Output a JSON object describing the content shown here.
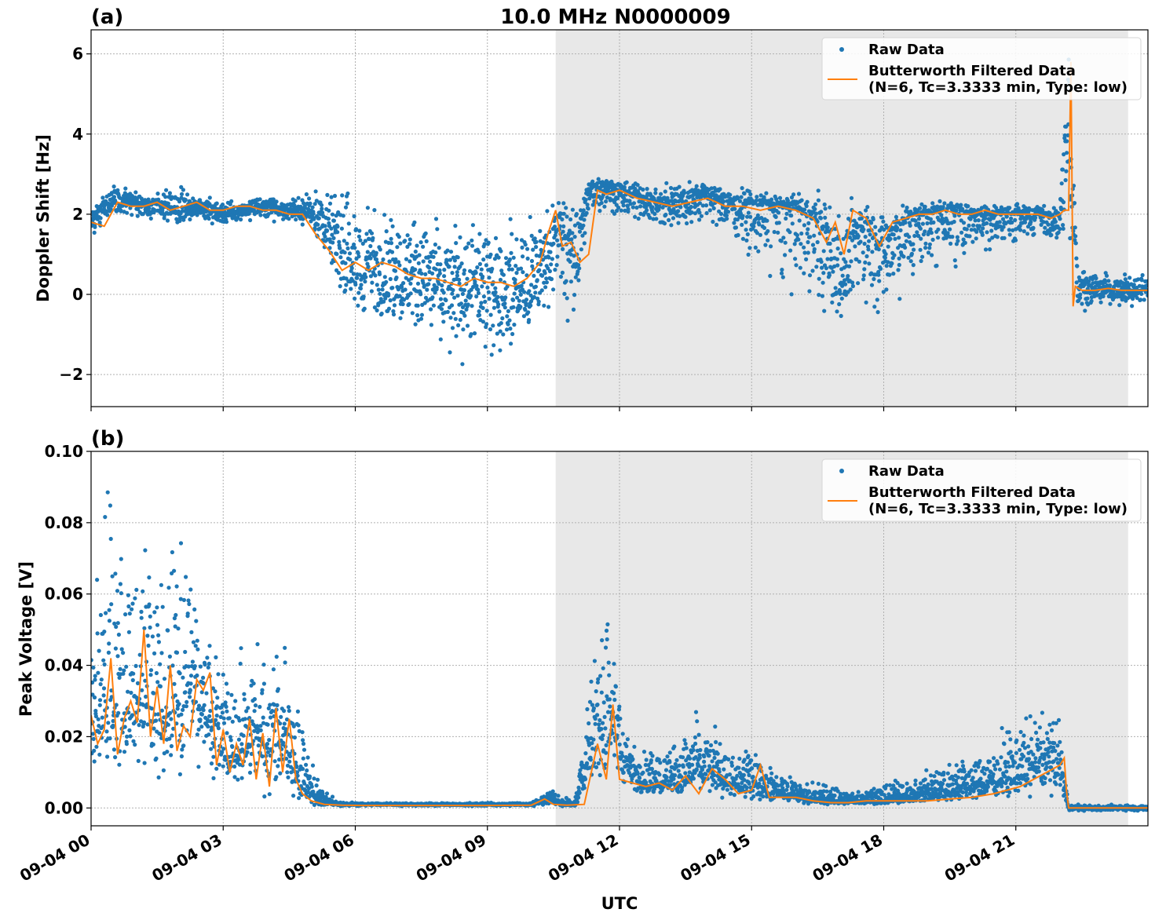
{
  "figure": {
    "title": "10.0 MHz N0000009",
    "xlabel": "UTC"
  },
  "chart_data": [
    {
      "type": "scatter",
      "panel_label": "(a)",
      "ylabel": "Doppler Shift [Hz]",
      "xlim": [
        0,
        24
      ],
      "ylim": [
        -2.8,
        6.6
      ],
      "yticks": [
        -2,
        0,
        2,
        4,
        6
      ],
      "ytick_labels": [
        "−2",
        "0",
        "2",
        "4",
        "6"
      ],
      "grid": true,
      "legend_position": "top-right",
      "shaded_region": {
        "start": 10.55,
        "end": 23.55,
        "color": "#e8e8e8"
      },
      "series": [
        {
          "name": "Raw Data",
          "style": "points",
          "color": "#1f77b4",
          "x": [
            0,
            0.5,
            1,
            1.5,
            2,
            2.5,
            3,
            3.5,
            4,
            4.5,
            5,
            5.5,
            6,
            6.5,
            7,
            7.5,
            8,
            8.5,
            9,
            9.5,
            10,
            10.3,
            10.6,
            11,
            11.3,
            11.6,
            12,
            12.5,
            13,
            13.5,
            14,
            14.5,
            15,
            15.5,
            16,
            16.5,
            17,
            17.5,
            18,
            18.5,
            19,
            19.5,
            20,
            20.5,
            21,
            21.5,
            22,
            22.2,
            22.4,
            23,
            23.55,
            24
          ],
          "y": [
            1.8,
            2.4,
            2.3,
            2.2,
            2.1,
            2.2,
            2.0,
            2.1,
            2.2,
            2.1,
            2.1,
            1.5,
            0.6,
            0.6,
            0.5,
            0.3,
            0.3,
            0.1,
            0.2,
            0.0,
            0.1,
            0.8,
            1.6,
            0.9,
            2.6,
            2.7,
            2.5,
            2.4,
            2.2,
            2.3,
            2.5,
            2.3,
            2.2,
            2.2,
            2.1,
            1.8,
            0.6,
            1.6,
            1.2,
            1.8,
            2.0,
            2.1,
            2.0,
            2.0,
            2.0,
            2.0,
            1.9,
            5.5,
            0.2,
            0.1,
            0.1,
            0.1
          ],
          "y_low": [
            1.4,
            1.9,
            1.9,
            1.8,
            1.6,
            1.8,
            1.7,
            1.8,
            1.8,
            1.8,
            1.7,
            0.3,
            -0.9,
            -1.1,
            -1.3,
            -1.6,
            -1.7,
            -1.8,
            -1.7,
            -1.7,
            -1.1,
            -0.5,
            -0.6,
            -0.9,
            1.9,
            1.9,
            1.8,
            1.7,
            1.5,
            1.5,
            1.7,
            1.4,
            0.6,
            0.3,
            -0.2,
            -0.8,
            -1.2,
            -0.6,
            -1.0,
            -0.2,
            0.3,
            0.6,
            0.8,
            1.0,
            1.1,
            1.2,
            1.2,
            -0.8,
            -0.8,
            -0.4,
            -0.3,
            -0.3
          ],
          "y_high": [
            2.1,
            2.8,
            2.6,
            2.6,
            2.7,
            2.6,
            2.3,
            2.4,
            2.5,
            2.4,
            2.6,
            2.7,
            2.6,
            2.5,
            2.3,
            2.2,
            2.1,
            2.2,
            2.3,
            2.1,
            2.4,
            2.7,
            2.6,
            2.4,
            3.0,
            3.0,
            2.9,
            2.8,
            2.8,
            2.9,
            2.9,
            2.7,
            2.7,
            2.6,
            2.6,
            2.6,
            2.6,
            2.4,
            2.5,
            2.4,
            2.4,
            2.4,
            2.3,
            2.3,
            2.3,
            2.3,
            2.2,
            6.2,
            0.7,
            0.6,
            0.6,
            0.6
          ]
        },
        {
          "name": "Butterworth Filtered Data\n(N=6, Tc=3.3333 min, Type: low)",
          "style": "line",
          "color": "#ff7f0e",
          "x": [
            0,
            0.3,
            0.6,
            0.9,
            1.2,
            1.5,
            1.8,
            2.1,
            2.4,
            2.7,
            3.0,
            3.3,
            3.6,
            3.9,
            4.2,
            4.5,
            4.8,
            5.1,
            5.4,
            5.7,
            6.0,
            6.3,
            6.6,
            6.9,
            7.2,
            7.5,
            7.8,
            8.1,
            8.4,
            8.7,
            9.0,
            9.3,
            9.6,
            9.9,
            10.2,
            10.4,
            10.55,
            10.7,
            10.9,
            11.1,
            11.3,
            11.5,
            11.7,
            12.0,
            12.4,
            12.8,
            13.2,
            13.6,
            14.0,
            14.4,
            14.8,
            15.2,
            15.6,
            16.0,
            16.4,
            16.7,
            16.9,
            17.1,
            17.3,
            17.6,
            17.9,
            18.2,
            18.5,
            18.8,
            19.1,
            19.4,
            19.7,
            20.0,
            20.3,
            20.6,
            20.9,
            21.2,
            21.5,
            21.8,
            22.0,
            22.1,
            22.2,
            22.25,
            22.3,
            22.35,
            22.5,
            22.8,
            23.1,
            23.4,
            23.7,
            24
          ],
          "y": [
            1.8,
            1.7,
            2.3,
            2.2,
            2.2,
            2.3,
            2.1,
            2.2,
            2.3,
            2.1,
            2.1,
            2.2,
            2.2,
            2.1,
            2.1,
            2.0,
            2.0,
            1.5,
            1.1,
            0.6,
            0.8,
            0.6,
            0.8,
            0.7,
            0.5,
            0.4,
            0.4,
            0.3,
            0.2,
            0.4,
            0.3,
            0.3,
            0.2,
            0.4,
            0.8,
            1.6,
            2.1,
            1.2,
            1.3,
            0.8,
            1.0,
            2.6,
            2.5,
            2.6,
            2.4,
            2.3,
            2.2,
            2.3,
            2.4,
            2.2,
            2.2,
            2.1,
            2.2,
            2.1,
            1.9,
            1.3,
            1.8,
            1.0,
            2.1,
            1.9,
            1.2,
            1.8,
            1.9,
            2.0,
            2.0,
            2.1,
            2.0,
            2.0,
            2.1,
            2.0,
            2.0,
            2.0,
            2.0,
            1.9,
            2.0,
            2.1,
            2.1,
            5.8,
            -0.3,
            0.2,
            0.1,
            0.1,
            0.15,
            0.1,
            0.1,
            0.1
          ]
        }
      ]
    },
    {
      "type": "scatter",
      "panel_label": "(b)",
      "ylabel": "Peak Voltage [V]",
      "xlim": [
        0,
        24
      ],
      "ylim": [
        -0.005,
        0.1
      ],
      "yticks": [
        0.0,
        0.02,
        0.04,
        0.06,
        0.08,
        0.1
      ],
      "ytick_labels": [
        "0.00",
        "0.02",
        "0.04",
        "0.06",
        "0.08",
        "0.10"
      ],
      "xticks": [
        0,
        3,
        6,
        9,
        12,
        15,
        18,
        21
      ],
      "xtick_labels": [
        "09-04 00",
        "09-04 03",
        "09-04 06",
        "09-04 09",
        "09-04 12",
        "09-04 15",
        "09-04 18",
        "09-04 21"
      ],
      "grid": true,
      "legend_position": "top-right",
      "shaded_region": {
        "start": 10.55,
        "end": 23.55,
        "color": "#e8e8e8"
      },
      "series": [
        {
          "name": "Raw Data",
          "style": "points",
          "color": "#1f77b4",
          "x": [
            0,
            0.4,
            0.8,
            1.2,
            1.6,
            2.0,
            2.4,
            2.8,
            3.2,
            3.6,
            4.0,
            4.4,
            4.8,
            5.2,
            5.6,
            6,
            7,
            8,
            9,
            10,
            10.4,
            10.7,
            11,
            11.4,
            11.8,
            12.2,
            12.6,
            13,
            13.4,
            13.8,
            14.2,
            14.6,
            15,
            15.4,
            15.8,
            16.2,
            16.6,
            17,
            17.5,
            18,
            18.5,
            19,
            19.5,
            20,
            20.5,
            21,
            21.5,
            22,
            22.2,
            22.5,
            23,
            24
          ],
          "y": [
            0.025,
            0.03,
            0.028,
            0.032,
            0.025,
            0.03,
            0.035,
            0.02,
            0.015,
            0.02,
            0.02,
            0.018,
            0.006,
            0.002,
            0.001,
            0.001,
            0.001,
            0.001,
            0.001,
            0.001,
            0.003,
            0.001,
            0.001,
            0.02,
            0.028,
            0.01,
            0.008,
            0.008,
            0.007,
            0.012,
            0.01,
            0.006,
            0.008,
            0.005,
            0.004,
            0.003,
            0.002,
            0.002,
            0.002,
            0.002,
            0.003,
            0.004,
            0.005,
            0.006,
            0.008,
            0.01,
            0.012,
            0.012,
            0.0,
            0.0,
            0.0,
            0.0
          ],
          "y_low": [
            0.004,
            0.006,
            0.008,
            0.007,
            0.006,
            0.005,
            0.008,
            0.004,
            0.004,
            0.004,
            0.003,
            0.003,
            0.001,
            0.0005,
            0.0005,
            0.0005,
            0.0005,
            0.0005,
            0.0005,
            0.0005,
            0.0005,
            0.0005,
            0.0005,
            0.005,
            0.006,
            0.002,
            0.002,
            0.002,
            0.002,
            0.003,
            0.003,
            0.002,
            0.002,
            0.001,
            0.001,
            0.001,
            0.0008,
            0.0008,
            0.0008,
            0.0008,
            0.001,
            0.001,
            0.001,
            0.002,
            0.002,
            0.002,
            0.003,
            0.003,
            -0.001,
            -0.001,
            -0.001,
            -0.001
          ],
          "y_high": [
            0.05,
            0.095,
            0.07,
            0.092,
            0.065,
            0.08,
            0.065,
            0.05,
            0.045,
            0.05,
            0.046,
            0.048,
            0.025,
            0.006,
            0.002,
            0.0015,
            0.0015,
            0.0015,
            0.0015,
            0.0015,
            0.006,
            0.003,
            0.003,
            0.045,
            0.055,
            0.02,
            0.018,
            0.019,
            0.021,
            0.03,
            0.025,
            0.016,
            0.022,
            0.012,
            0.01,
            0.009,
            0.007,
            0.006,
            0.006,
            0.007,
            0.009,
            0.011,
            0.013,
            0.016,
            0.02,
            0.028,
            0.032,
            0.025,
            0.001,
            0.001,
            0.001,
            0.001
          ]
        },
        {
          "name": "Butterworth Filtered Data\n(N=6, Tc=3.3333 min, Type: low)",
          "style": "line",
          "color": "#ff7f0e",
          "x": [
            0,
            0.15,
            0.3,
            0.45,
            0.6,
            0.75,
            0.9,
            1.05,
            1.2,
            1.35,
            1.5,
            1.65,
            1.8,
            1.95,
            2.1,
            2.25,
            2.4,
            2.55,
            2.7,
            2.85,
            3.0,
            3.15,
            3.3,
            3.45,
            3.6,
            3.75,
            3.9,
            4.05,
            4.2,
            4.35,
            4.5,
            4.65,
            4.8,
            5.0,
            5.3,
            5.7,
            6.2,
            7,
            8,
            9,
            10,
            10.3,
            10.5,
            10.8,
            11.2,
            11.5,
            11.7,
            11.85,
            12.0,
            12.3,
            12.6,
            12.9,
            13.2,
            13.5,
            13.8,
            14.1,
            14.4,
            14.7,
            15.0,
            15.2,
            15.4,
            15.7,
            16.0,
            16.4,
            16.8,
            17.2,
            17.6,
            18.0,
            18.5,
            19.0,
            19.5,
            20.0,
            20.5,
            20.8,
            21.1,
            21.4,
            21.7,
            22.0,
            22.1,
            22.15,
            22.2,
            22.5,
            23,
            24
          ],
          "y": [
            0.026,
            0.018,
            0.022,
            0.042,
            0.015,
            0.025,
            0.03,
            0.024,
            0.05,
            0.02,
            0.034,
            0.018,
            0.04,
            0.016,
            0.023,
            0.02,
            0.036,
            0.033,
            0.038,
            0.012,
            0.022,
            0.01,
            0.018,
            0.012,
            0.025,
            0.008,
            0.021,
            0.006,
            0.028,
            0.01,
            0.025,
            0.008,
            0.004,
            0.002,
            0.001,
            0.0008,
            0.0007,
            0.0007,
            0.0007,
            0.0007,
            0.0008,
            0.0025,
            0.001,
            0.0008,
            0.001,
            0.018,
            0.008,
            0.029,
            0.008,
            0.007,
            0.006,
            0.007,
            0.005,
            0.009,
            0.004,
            0.011,
            0.008,
            0.004,
            0.005,
            0.012,
            0.003,
            0.003,
            0.003,
            0.002,
            0.0015,
            0.0015,
            0.002,
            0.002,
            0.002,
            0.002,
            0.0025,
            0.003,
            0.004,
            0.005,
            0.006,
            0.008,
            0.01,
            0.012,
            0.014,
            0.005,
            0.0,
            0.0,
            0.0,
            0.0
          ]
        }
      ]
    }
  ]
}
